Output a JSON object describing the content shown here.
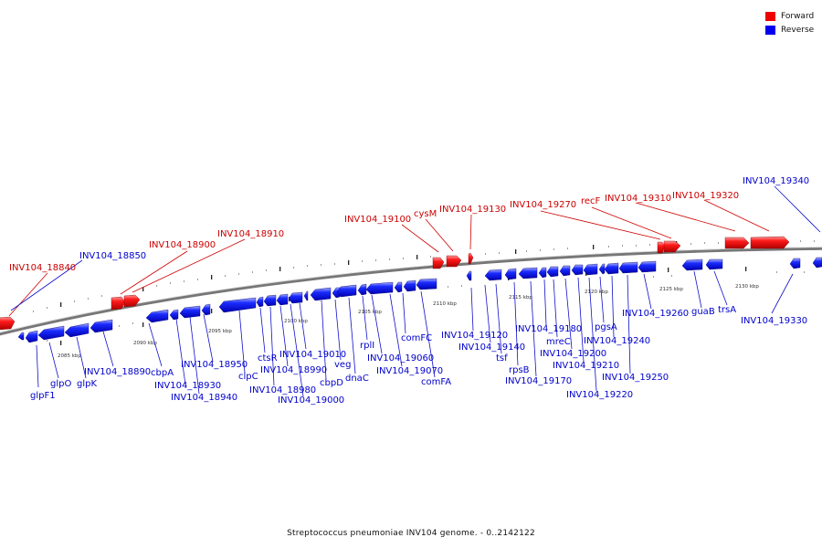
{
  "legend": {
    "forward_label": "Forward",
    "reverse_label": "Reverse",
    "forward_color": "#ee0000",
    "reverse_color": "#0000ee"
  },
  "caption": "Streptococcus pneumoniae INV104 genome. - 0..2142122",
  "axis_ticks": [
    "2085 kbp",
    "2090 kbp",
    "2095 kbp",
    "2100 kbp",
    "2105 kbp",
    "2110 kbp",
    "2115 kbp",
    "2120 kbp",
    "2125 kbp",
    "2130 kbp"
  ],
  "genes": {
    "glpF1": "glpF1",
    "glpO": "glpO",
    "glpK": "glpK",
    "g18840": "INV104_18840",
    "g18850": "INV104_18850",
    "g18890": "INV104_18890",
    "g18900": "INV104_18900",
    "g18910": "INV104_18910",
    "cbpA": "cbpA",
    "g18930": "INV104_18930",
    "g18940": "INV104_18940",
    "g18950": "INV104_18950",
    "clpC": "clpC",
    "ctsR": "ctsR",
    "g18980": "INV104_18980",
    "g18990": "INV104_18990",
    "g19000": "INV104_19000",
    "g19010": "INV104_19010",
    "cbpD": "cbpD",
    "veg": "veg",
    "dnaC": "dnaC",
    "rplI": "rplI",
    "g19060": "INV104_19060",
    "g19070": "INV104_19070",
    "comFC": "comFC",
    "comFA": "comFA",
    "g19100": "INV104_19100",
    "cysM": "cysM",
    "g19130": "INV104_19130",
    "g19120": "INV104_19120",
    "g19140": "INV104_19140",
    "tsf": "tsf",
    "rpsB": "rpsB",
    "g19170": "INV104_19170",
    "g19180": "INV104_19180",
    "mreC": "mreC",
    "g19200": "INV104_19200",
    "g19210": "INV104_19210",
    "g19220": "INV104_19220",
    "pgsA": "pgsA",
    "g19240": "INV104_19240",
    "g19250": "INV104_19250",
    "g19260": "INV104_19260",
    "g19270": "INV104_19270",
    "recF": "recF",
    "g19310": "INV104_19310",
    "g19320": "INV104_19320",
    "guaB": "guaB",
    "trsA": "trsA",
    "g19330": "INV104_19330",
    "g19340": "INV104_19340"
  }
}
